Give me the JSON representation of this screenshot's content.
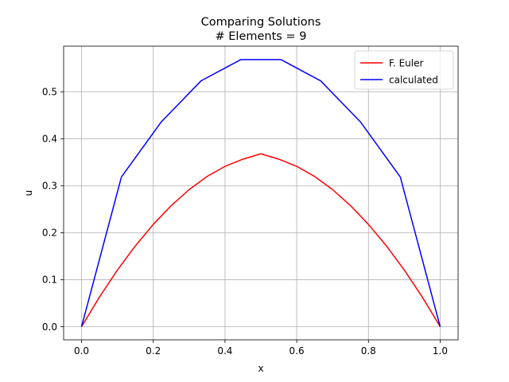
{
  "chart_data": {
    "type": "line",
    "title": "Comparing Solutions",
    "subtitle": "# Elements = 9",
    "xlabel": "x",
    "ylabel": "u",
    "xlim": [
      -0.05,
      1.05
    ],
    "ylim": [
      -0.028,
      0.597
    ],
    "xticks": [
      0.0,
      0.2,
      0.4,
      0.6,
      0.8,
      1.0
    ],
    "xtick_labels": [
      "0.0",
      "0.2",
      "0.4",
      "0.6",
      "0.8",
      "1.0"
    ],
    "yticks": [
      0.0,
      0.1,
      0.2,
      0.3,
      0.4,
      0.5
    ],
    "ytick_labels": [
      "0.0",
      "0.1",
      "0.2",
      "0.3",
      "0.4",
      "0.5"
    ],
    "grid": true,
    "legend_position": "top-right",
    "series": [
      {
        "name": "F. Euler",
        "color": "#ff0000",
        "x": [
          0.0,
          0.05,
          0.1,
          0.15,
          0.2,
          0.25,
          0.3,
          0.35,
          0.4,
          0.45,
          0.5,
          0.55,
          0.6,
          0.65,
          0.7,
          0.75,
          0.8,
          0.85,
          0.9,
          0.95,
          1.0
        ],
        "y": [
          0.0,
          0.0632,
          0.1205,
          0.1719,
          0.2177,
          0.2576,
          0.2917,
          0.3197,
          0.3412,
          0.3565,
          0.3679,
          0.3565,
          0.3412,
          0.3197,
          0.2917,
          0.2576,
          0.2177,
          0.1719,
          0.1205,
          0.0632,
          0.0
        ]
      },
      {
        "name": "calculated",
        "color": "#0000ff",
        "x": [
          0.0,
          0.1111,
          0.2222,
          0.3333,
          0.4444,
          0.5556,
          0.6667,
          0.7778,
          0.8889,
          1.0
        ],
        "y": [
          0.0,
          0.3184,
          0.4357,
          0.5232,
          0.5685,
          0.5685,
          0.5232,
          0.4357,
          0.3184,
          0.0
        ]
      }
    ]
  }
}
